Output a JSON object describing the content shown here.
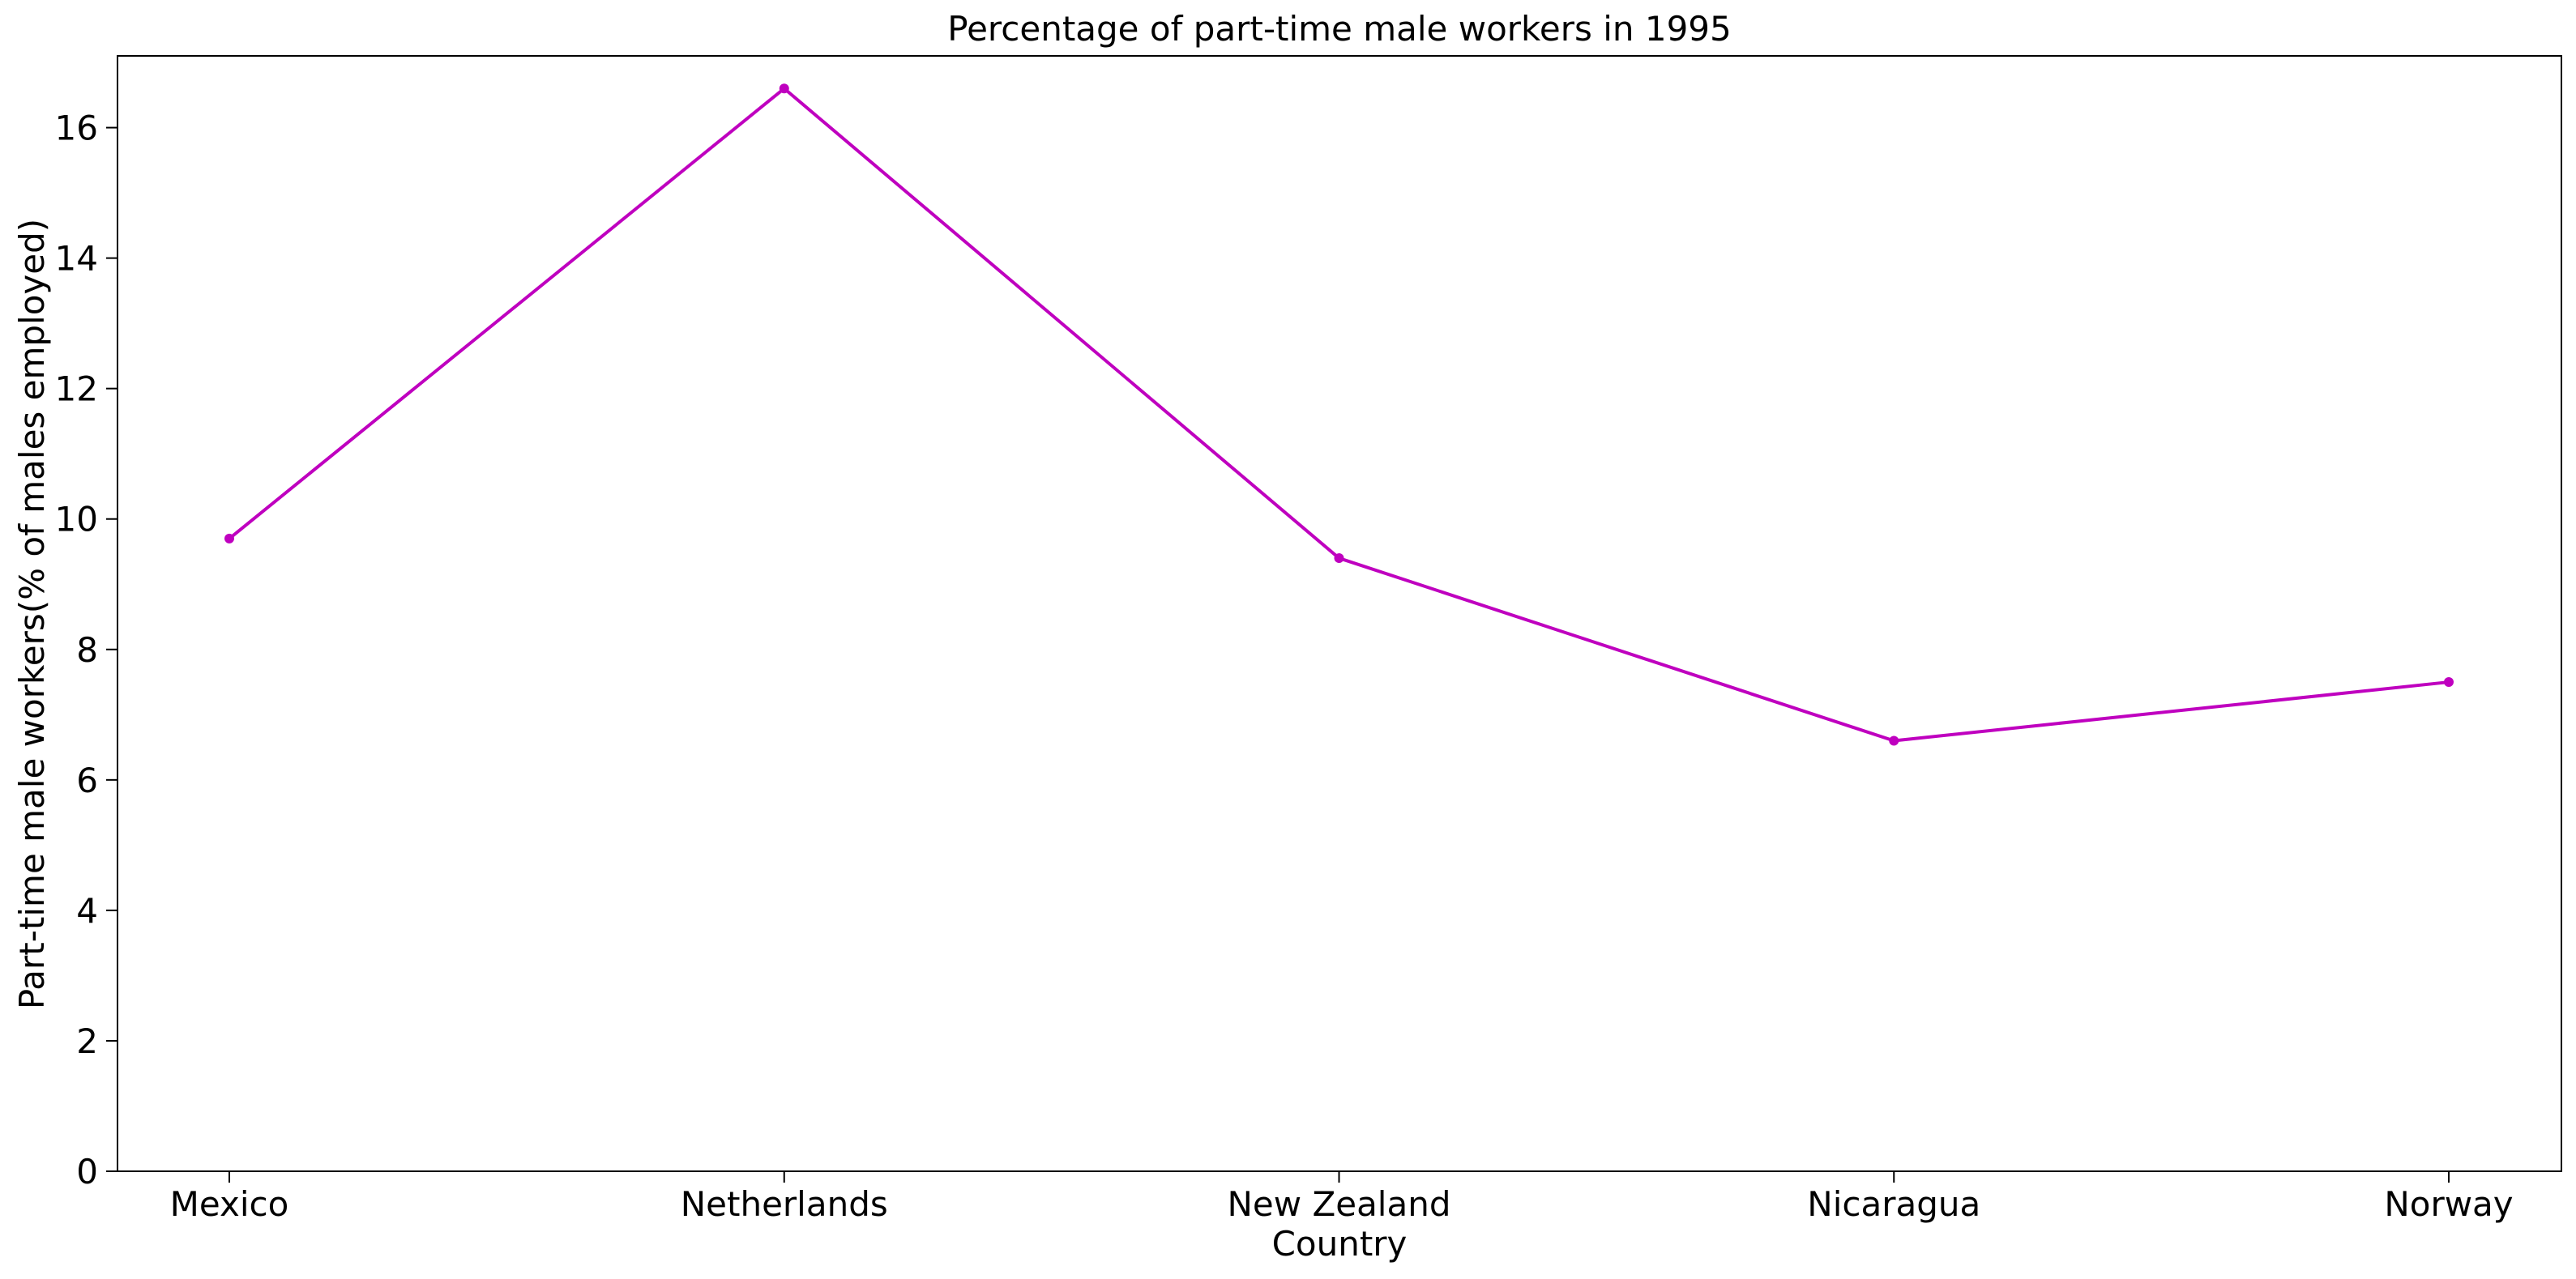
{
  "chart_data": {
    "type": "line",
    "title": "Percentage of part-time male workers in 1995",
    "xlabel": "Country",
    "ylabel": "Part-time male workers(% of males employed)",
    "categories": [
      "Mexico",
      "Netherlands",
      "New Zealand",
      "Nicaragua",
      "Norway"
    ],
    "series": [
      {
        "values": [
          9.7,
          16.6,
          9.4,
          6.6,
          7.5
        ],
        "color": "#bf00bf"
      }
    ],
    "ylim": [
      0,
      17.1
    ],
    "yticks": [
      0,
      2,
      4,
      6,
      8,
      10,
      12,
      14,
      16
    ],
    "grid": false,
    "legend": "none"
  }
}
